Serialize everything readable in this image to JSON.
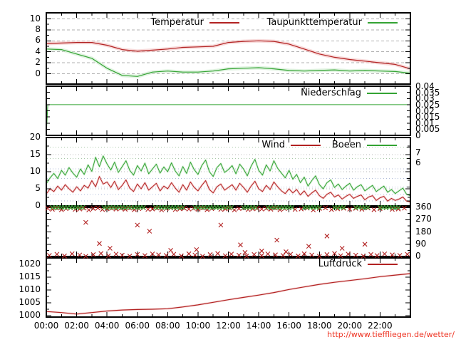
{
  "footer": {
    "url": "http://www.tieffliegen.de/wetter/"
  },
  "colors": {
    "series_red": "#b22222",
    "series_green": "#33a333",
    "shadow_red": "#f2c0c0",
    "shadow_green": "#c8e9c8",
    "grid_gray": "#b0b0b0",
    "grid_dot_gray": "#b8b8b8",
    "grid_dot_green": "#a8c8a8",
    "grid_dot_blue": "#b0bcd8",
    "url_red": "#ee3322",
    "axis_black": "#000000"
  },
  "x_axis": {
    "tick_labels": [
      "00:00",
      "02:00",
      "04:00",
      "06:00",
      "08:00",
      "10:00",
      "12:00",
      "14:00",
      "16:00",
      "18:00",
      "20:00",
      "22:00"
    ],
    "hours": [
      0,
      2,
      4,
      6,
      8,
      10,
      12,
      14,
      16,
      18,
      20,
      22
    ],
    "range_hours": [
      0,
      24
    ]
  },
  "chart_data": [
    {
      "id": "temperature",
      "type": "line",
      "yticks": [
        0,
        2,
        4,
        6,
        8,
        10
      ],
      "ylim": [
        -1.9,
        11.1
      ],
      "grid": "dashed-gray",
      "legend_position": "top-right-inside",
      "x_hours": [
        0,
        1,
        2,
        3,
        4,
        5,
        6,
        7,
        8,
        9,
        10,
        11,
        12,
        13,
        14,
        15,
        16,
        17,
        18,
        19,
        20,
        21,
        22,
        23,
        24
      ],
      "series": [
        {
          "name": "Temperatur",
          "color": "#b22222",
          "values": [
            5.5,
            5.6,
            5.7,
            5.7,
            5.2,
            4.4,
            4.1,
            4.3,
            4.5,
            4.8,
            4.9,
            5.0,
            5.7,
            5.9,
            6.0,
            5.9,
            5.4,
            4.5,
            3.6,
            3.0,
            2.6,
            2.3,
            2.0,
            1.7,
            0.9
          ]
        },
        {
          "name": "Taupunkttemperatur",
          "color": "#33a333",
          "values": [
            4.5,
            4.4,
            3.6,
            2.8,
            1.0,
            -0.3,
            -0.5,
            0.3,
            0.5,
            0.3,
            0.3,
            0.5,
            0.9,
            1.0,
            1.1,
            0.9,
            0.6,
            0.5,
            0.6,
            0.7,
            0.5,
            0.6,
            0.5,
            0.4,
            0.1
          ]
        }
      ]
    },
    {
      "id": "precipitation",
      "type": "line",
      "y2_tick_labels": [
        "0.04",
        "0.035",
        "0.03",
        "0.025",
        "0.02",
        "0.015",
        "0.01",
        "0.005",
        "0"
      ],
      "y2_tick_values": [
        0.04,
        0.035,
        0.03,
        0.025,
        0.02,
        0.015,
        0.01,
        0.005,
        0
      ],
      "y2lim": [
        0,
        0.04
      ],
      "legend_position": "top-right-inside",
      "series": [
        {
          "name": "Niederschlag",
          "color": "#33a333",
          "points": [
            [
              0,
              0
            ],
            [
              0.1,
              0.025
            ],
            [
              24,
              0.025
            ]
          ]
        }
      ]
    },
    {
      "id": "wind",
      "type": "line",
      "yticks": [
        0,
        5,
        10,
        15,
        20
      ],
      "ylim": [
        0,
        20
      ],
      "y2_labels": [
        {
          "text": "7",
          "value": 15.4
        },
        {
          "text": "6",
          "value": 12.6
        }
      ],
      "beaufort_boundaries": [
        1.5,
        3.3,
        5.5,
        8.0,
        10.8,
        13.9,
        17.2
      ],
      "x_start": 0,
      "x_step": 0.25,
      "series": [
        {
          "name": "Wind",
          "color": "#b22222",
          "values": [
            3.5,
            5.0,
            4.2,
            5.8,
            4.6,
            6.2,
            5.0,
            4.0,
            5.6,
            4.4,
            6.0,
            5.2,
            7.4,
            5.6,
            8.6,
            6.4,
            7.0,
            5.4,
            7.2,
            4.8,
            6.0,
            7.6,
            5.2,
            4.2,
            6.4,
            5.0,
            6.8,
            4.6,
            5.6,
            6.6,
            4.4,
            5.8,
            5.0,
            6.8,
            5.2,
            4.0,
            6.2,
            4.6,
            7.0,
            5.4,
            4.4,
            6.0,
            7.4,
            4.8,
            3.8,
            5.6,
            6.4,
            4.6,
            5.4,
            6.2,
            4.6,
            6.6,
            5.4,
            4.0,
            5.8,
            7.2,
            5.0,
            4.2,
            6.0,
            4.8,
            7.0,
            5.6,
            4.4,
            3.6,
            5.0,
            3.8,
            4.8,
            3.2,
            4.4,
            2.8,
            3.8,
            4.6,
            3.0,
            2.2,
            3.4,
            4.0,
            2.6,
            3.2,
            2.0,
            2.8,
            3.4,
            2.2,
            2.8,
            3.2,
            1.8,
            2.6,
            3.0,
            1.6,
            2.4,
            2.8,
            1.4,
            2.2,
            1.6,
            2.0,
            2.6,
            1.4,
            1.2
          ]
        },
        {
          "name": "Boeen",
          "color": "#33a333",
          "values": [
            6.5,
            8.2,
            9.5,
            8.0,
            10.4,
            9.0,
            11.2,
            9.6,
            8.4,
            10.8,
            9.2,
            12.0,
            10.1,
            14.2,
            11.5,
            14.6,
            12.3,
            10.5,
            12.8,
            9.8,
            11.5,
            13.2,
            10.4,
            9.0,
            11.8,
            10.2,
            12.5,
            9.4,
            10.8,
            12.2,
            9.6,
            11.4,
            10.0,
            12.6,
            10.2,
            8.8,
            11.5,
            9.5,
            12.8,
            10.6,
            9.2,
            11.8,
            13.4,
            10.0,
            8.6,
            11.2,
            12.4,
            9.8,
            10.6,
            11.8,
            9.4,
            12.2,
            10.8,
            8.8,
            11.6,
            13.6,
            10.4,
            9.0,
            12.0,
            10.2,
            13.2,
            11.0,
            9.6,
            8.2,
            10.4,
            7.8,
            9.2,
            6.8,
            8.4,
            5.8,
            7.4,
            8.8,
            6.2,
            5.0,
            6.8,
            7.6,
            5.4,
            6.4,
            4.8,
            5.8,
            6.6,
            4.6,
            5.6,
            6.2,
            4.4,
            5.2,
            6.0,
            4.2,
            5.0,
            5.8,
            4.0,
            4.8,
            3.6,
            4.4,
            5.2,
            3.4,
            3.0
          ]
        }
      ]
    },
    {
      "id": "wind-direction",
      "type": "scatter",
      "y2ticks": [
        360,
        270,
        180,
        90,
        0
      ],
      "ylim": [
        0,
        360
      ],
      "marker": "x",
      "series": [
        {
          "id": "wind-direction-points",
          "color": "#b22222",
          "t": [
            0.1,
            0.4,
            0.7,
            1.0,
            1.3,
            1.6,
            1.9,
            2.2,
            2.5,
            2.8,
            3.1,
            3.4,
            3.7,
            4.0,
            4.3,
            4.6,
            4.9,
            5.2,
            5.5,
            5.8,
            6.1,
            6.4,
            6.7,
            7.0,
            7.3,
            7.6,
            7.9,
            8.2,
            8.5,
            8.8,
            9.1,
            9.4,
            9.7,
            10.0,
            10.3,
            10.6,
            10.9,
            11.2,
            11.5,
            11.8,
            12.1,
            12.4,
            12.7,
            13.0,
            13.3,
            13.6,
            13.9,
            14.2,
            14.5,
            14.8,
            15.1,
            15.4,
            15.7,
            16.0,
            16.4,
            16.8,
            17.2,
            17.6,
            18.0,
            18.4,
            18.8,
            19.2,
            19.6,
            20.0,
            20.4,
            20.8,
            21.2,
            21.6,
            22.0,
            22.4,
            22.8,
            23.2,
            23.6,
            0.2,
            0.7,
            1.2,
            1.7,
            2.2,
            2.6,
            3.1,
            3.6,
            4.1,
            4.6,
            5.0,
            5.5,
            6.0,
            6.5,
            7.0,
            7.4,
            7.9,
            8.4,
            8.9,
            9.4,
            9.8,
            10.3,
            10.8,
            11.3,
            11.8,
            12.2,
            12.7,
            13.2,
            13.7,
            14.2,
            14.6,
            15.1,
            15.6,
            16.1,
            16.6,
            17.0,
            17.5,
            18.0,
            18.5,
            19.0,
            19.4,
            19.9,
            20.4,
            20.9,
            21.4,
            21.8,
            22.3,
            22.8,
            23.3,
            23.8,
            2.6,
            3.5,
            4.2,
            6.0,
            6.8,
            8.2,
            9.9,
            11.5,
            12.8,
            13.1,
            14.2,
            15.2,
            15.8,
            17.3,
            18.5,
            19.5,
            21.0
          ],
          "deg": [
            352,
            346,
            355,
            343,
            350,
            357,
            345,
            348,
            354,
            341,
            351,
            356,
            344,
            349,
            353,
            347,
            352,
            346,
            355,
            343,
            350,
            357,
            345,
            348,
            354,
            341,
            351,
            356,
            344,
            349,
            353,
            347,
            352,
            346,
            355,
            343,
            350,
            357,
            345,
            348,
            354,
            341,
            351,
            356,
            344,
            349,
            353,
            347,
            352,
            346,
            355,
            343,
            350,
            357,
            345,
            348,
            354,
            341,
            351,
            356,
            344,
            349,
            353,
            347,
            352,
            346,
            355,
            343,
            350,
            357,
            345,
            348,
            354,
            8,
            16,
            4,
            20,
            11,
            2,
            14,
            22,
            6,
            18,
            10,
            3,
            15,
            7,
            19,
            12,
            8,
            16,
            4,
            20,
            11,
            2,
            14,
            22,
            6,
            18,
            10,
            3,
            15,
            7,
            19,
            12,
            8,
            16,
            4,
            20,
            11,
            2,
            14,
            22,
            6,
            18,
            10,
            3,
            15,
            7,
            19,
            12,
            8,
            16,
            250,
            95,
            60,
            230,
            185,
            45,
            50,
            230,
            85,
            30,
            40,
            120,
            35,
            75,
            150,
            60,
            90
          ]
        },
        {
          "id": "gust-direction-points",
          "color": "#33a333",
          "t": [
            0.4,
            0.6,
            0.8,
            1.0,
            1.2,
            1.4,
            1.6,
            1.8,
            2.0,
            2.2,
            2.4,
            3.8,
            4.0,
            4.2,
            4.4,
            4.6,
            4.8,
            5.0,
            5.2,
            5.4,
            5.6,
            5.8,
            6.0,
            6.2,
            6.4,
            7.2,
            7.4,
            7.6,
            7.8,
            8.0,
            8.2,
            8.4,
            8.6,
            8.8,
            9.0,
            9.8,
            10.0,
            10.2,
            10.4,
            10.6,
            10.8,
            11.0,
            11.2,
            11.4,
            11.6,
            11.8,
            12.0,
            12.2,
            13.0,
            13.2,
            13.4,
            13.6,
            13.8,
            14.6,
            14.8,
            15.0,
            15.2,
            15.4,
            15.6,
            15.8,
            16.0,
            16.2,
            17.0,
            17.2,
            17.4,
            17.6,
            17.8,
            18.0,
            19.0,
            19.2,
            19.4,
            19.6,
            20.4,
            20.6,
            20.8,
            21.0,
            21.2,
            22.0,
            22.2,
            22.4,
            22.6,
            22.8,
            23.0,
            23.2
          ],
          "deg_constant": 359
        }
      ]
    },
    {
      "id": "pressure",
      "type": "line",
      "yticks": [
        1000,
        1005,
        1010,
        1015,
        1020
      ],
      "ylim": [
        999.4,
        1023
      ],
      "legend_position": "top-right-inside",
      "x_hours": [
        0,
        1,
        2,
        3,
        4,
        5,
        6,
        7,
        8,
        9,
        10,
        11,
        12,
        13,
        14,
        15,
        16,
        17,
        18,
        19,
        20,
        21,
        22,
        23,
        24
      ],
      "series": [
        {
          "name": "Luftdruck",
          "color": "#b22222",
          "values": [
            1001.6,
            1001.2,
            1000.6,
            1001.2,
            1001.8,
            1002.2,
            1002.4,
            1002.5,
            1002.7,
            1003.4,
            1004.2,
            1005.2,
            1006.2,
            1007.1,
            1008.0,
            1009.0,
            1010.2,
            1011.2,
            1012.2,
            1013.0,
            1013.7,
            1014.4,
            1015.2,
            1015.8,
            1016.4
          ]
        }
      ]
    }
  ]
}
